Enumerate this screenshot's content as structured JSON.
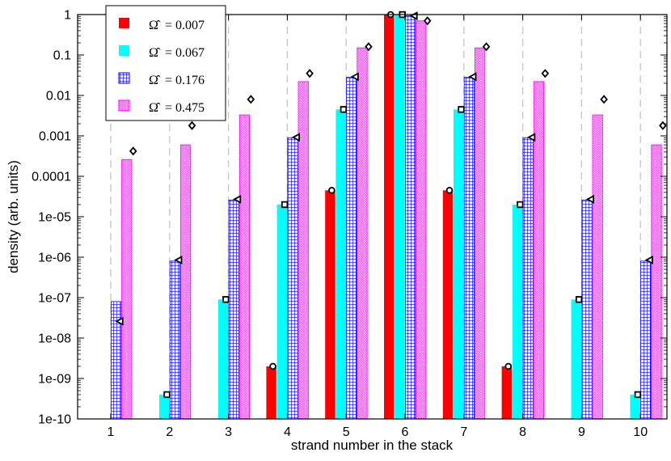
{
  "chart_data": {
    "type": "bar",
    "xlabel": "strand number in the stack",
    "ylabel": "density (arb. units)",
    "yscale": "log",
    "ylim": [
      1e-10,
      1
    ],
    "categories": [
      "1",
      "2",
      "3",
      "4",
      "5",
      "6",
      "7",
      "8",
      "9",
      "10"
    ],
    "yticks": [
      {
        "value": 1,
        "label": "1"
      },
      {
        "value": 0.1,
        "label": "0.1"
      },
      {
        "value": 0.01,
        "label": "0.01"
      },
      {
        "value": 0.001,
        "label": "0.001"
      },
      {
        "value": 0.0001,
        "label": "0.0001"
      },
      {
        "value": 1e-05,
        "label": "1e-05"
      },
      {
        "value": 1e-06,
        "label": "1e-06"
      },
      {
        "value": 1e-07,
        "label": "1e-07"
      },
      {
        "value": 1e-08,
        "label": "1e-08"
      },
      {
        "value": 1e-09,
        "label": "1e-09"
      },
      {
        "value": 1e-10,
        "label": "1e-10"
      }
    ],
    "grid": "vertical dashed",
    "legend_position": "top-left",
    "legend_symbol": "Ω̂",
    "series": [
      {
        "name": "Ω̂ = 0.007",
        "value_label": "= 0.007",
        "color": "#ff0000",
        "pattern": "solid",
        "marker": "circle",
        "values": [
          null,
          null,
          null,
          2e-09,
          4.5e-05,
          1,
          4.5e-05,
          2e-09,
          null,
          null
        ],
        "markers": [
          null,
          null,
          null,
          2e-09,
          4.5e-05,
          1,
          4.5e-05,
          2e-09,
          null,
          null
        ]
      },
      {
        "name": "Ω̂ = 0.067",
        "value_label": "= 0.067",
        "color": "#00ffff",
        "pattern": "solid",
        "marker": "square",
        "values": [
          null,
          4e-10,
          9e-08,
          2e-05,
          0.0045,
          1,
          0.0045,
          2e-05,
          9e-08,
          4e-10
        ],
        "markers": [
          null,
          4e-10,
          9e-08,
          2e-05,
          0.0045,
          1,
          0.0045,
          2e-05,
          9e-08,
          4e-10
        ]
      },
      {
        "name": "Ω̂ = 0.176",
        "value_label": "= 0.176",
        "color": "#0000ff",
        "pattern": "grid",
        "marker": "triangle",
        "values": [
          8e-08,
          8e-07,
          2.6e-05,
          0.0009,
          0.028,
          0.93,
          0.028,
          0.0009,
          2.6e-05,
          8e-07
        ],
        "markers": [
          2.6e-08,
          8.5e-07,
          2.7e-05,
          0.00092,
          0.029,
          0.93,
          0.029,
          0.00092,
          2.7e-05,
          8.5e-07
        ]
      },
      {
        "name": "Ω̂ = 0.475",
        "value_label": "= 0.475",
        "color": "#ff00ff",
        "pattern": "dots",
        "marker": "diamond",
        "values": [
          0.00026,
          0.0006,
          0.0033,
          0.022,
          0.15,
          0.7,
          0.15,
          0.022,
          0.0033,
          0.0006
        ],
        "markers": [
          0.00042,
          0.0018,
          0.008,
          0.035,
          0.16,
          0.7,
          0.16,
          0.035,
          0.008,
          0.0018
        ]
      }
    ]
  }
}
